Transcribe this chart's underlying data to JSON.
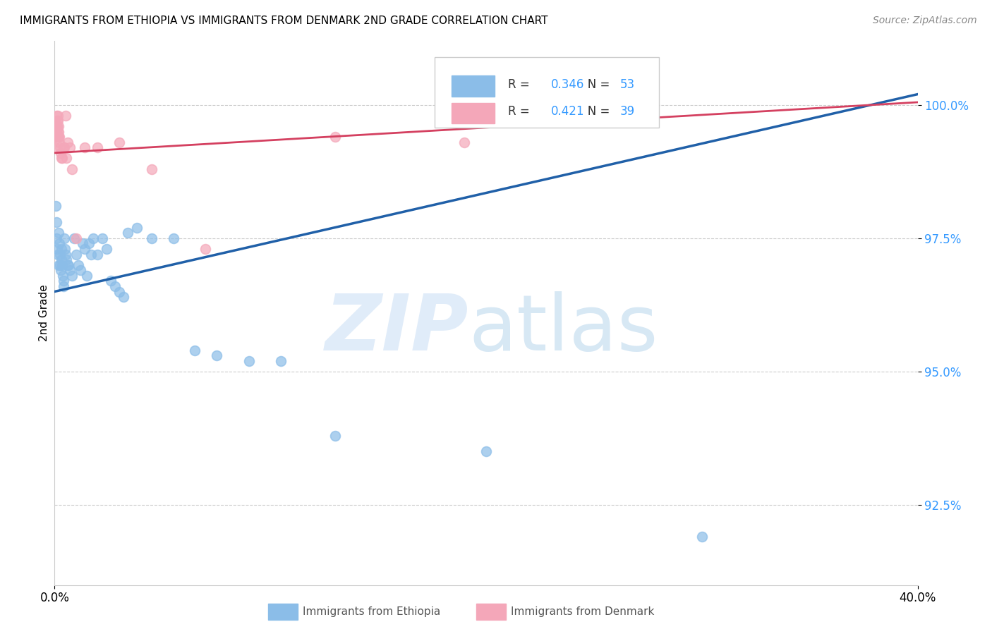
{
  "title": "IMMIGRANTS FROM ETHIOPIA VS IMMIGRANTS FROM DENMARK 2ND GRADE CORRELATION CHART",
  "source": "Source: ZipAtlas.com",
  "ylabel": "2nd Grade",
  "xlim": [
    0.0,
    40.0
  ],
  "ylim": [
    91.0,
    101.2
  ],
  "r_ethiopia": 0.346,
  "n_ethiopia": 53,
  "r_denmark": 0.421,
  "n_denmark": 39,
  "legend_label_ethiopia": "Immigrants from Ethiopia",
  "legend_label_denmark": "Immigrants from Denmark",
  "color_ethiopia": "#8bbde8",
  "color_denmark": "#f4a7b9",
  "line_color_ethiopia": "#2060a8",
  "line_color_denmark": "#d44060",
  "ethiopia_x": [
    0.05,
    0.08,
    0.1,
    0.12,
    0.15,
    0.18,
    0.2,
    0.22,
    0.25,
    0.25,
    0.28,
    0.3,
    0.32,
    0.35,
    0.38,
    0.4,
    0.42,
    0.45,
    0.48,
    0.5,
    0.55,
    0.6,
    0.65,
    0.7,
    0.8,
    0.9,
    1.0,
    1.1,
    1.2,
    1.3,
    1.4,
    1.5,
    1.6,
    1.7,
    1.8,
    2.0,
    2.2,
    2.4,
    2.6,
    2.8,
    3.0,
    3.2,
    3.4,
    3.8,
    4.5,
    5.5,
    6.5,
    7.5,
    9.0,
    10.5,
    13.0,
    20.0,
    30.0
  ],
  "ethiopia_y": [
    98.1,
    97.8,
    97.5,
    97.3,
    97.2,
    97.0,
    97.6,
    97.4,
    97.2,
    97.0,
    96.9,
    97.3,
    97.1,
    97.0,
    96.8,
    96.7,
    96.6,
    97.5,
    97.3,
    97.2,
    97.1,
    97.0,
    97.0,
    96.9,
    96.8,
    97.5,
    97.2,
    97.0,
    96.9,
    97.4,
    97.3,
    96.8,
    97.4,
    97.2,
    97.5,
    97.2,
    97.5,
    97.3,
    96.7,
    96.6,
    96.5,
    96.4,
    97.6,
    97.7,
    97.5,
    97.5,
    95.4,
    95.3,
    95.2,
    95.2,
    93.8,
    93.5,
    91.9
  ],
  "denmark_x": [
    0.03,
    0.05,
    0.07,
    0.08,
    0.1,
    0.1,
    0.11,
    0.12,
    0.13,
    0.14,
    0.15,
    0.15,
    0.16,
    0.17,
    0.18,
    0.19,
    0.2,
    0.22,
    0.23,
    0.25,
    0.28,
    0.3,
    0.35,
    0.4,
    0.45,
    0.5,
    0.55,
    0.6,
    0.7,
    0.8,
    1.0,
    1.4,
    2.0,
    3.0,
    4.5,
    7.0,
    13.0,
    19.0,
    27.0
  ],
  "denmark_y": [
    99.2,
    99.4,
    99.5,
    99.6,
    99.8,
    99.5,
    99.7,
    99.6,
    99.6,
    99.5,
    99.7,
    99.4,
    99.8,
    99.6,
    99.5,
    99.4,
    99.4,
    99.3,
    99.4,
    99.2,
    99.1,
    99.0,
    99.0,
    99.2,
    99.2,
    99.8,
    99.0,
    99.3,
    99.2,
    98.8,
    97.5,
    99.2,
    99.2,
    99.3,
    98.8,
    97.3,
    99.4,
    99.3,
    100.0
  ],
  "reg_eth_x0": 0.0,
  "reg_eth_y0": 96.5,
  "reg_eth_x1": 40.0,
  "reg_eth_y1": 100.2,
  "reg_den_x0": 0.0,
  "reg_den_y0": 99.1,
  "reg_den_x1": 40.0,
  "reg_den_y1": 100.05
}
